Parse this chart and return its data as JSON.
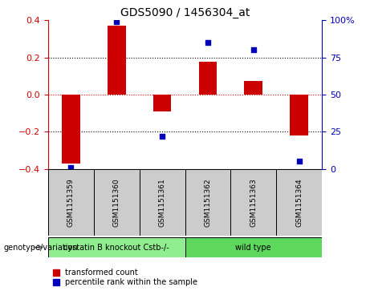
{
  "title": "GDS5090 / 1456304_at",
  "samples": [
    "GSM1151359",
    "GSM1151360",
    "GSM1151361",
    "GSM1151362",
    "GSM1151363",
    "GSM1151364"
  ],
  "bar_values": [
    -0.37,
    0.37,
    -0.09,
    0.175,
    0.075,
    -0.22
  ],
  "percentile_values": [
    1,
    99,
    22,
    85,
    80,
    5
  ],
  "ylim_left": [
    -0.4,
    0.4
  ],
  "ylim_right": [
    0,
    100
  ],
  "groups": [
    {
      "label": "cystatin B knockout Cstb-/-",
      "n": 3,
      "color": "#90EE90"
    },
    {
      "label": "wild type",
      "n": 3,
      "color": "#5DD85D"
    }
  ],
  "bar_color": "#cc0000",
  "dot_color": "#0000bb",
  "zero_line_color": "#cc0000",
  "left_tick_color": "#cc0000",
  "right_tick_color": "#0000bb",
  "legend_items": [
    "transformed count",
    "percentile rank within the sample"
  ],
  "genotype_label": "genotype/variation",
  "yticks_left": [
    -0.4,
    -0.2,
    0.0,
    0.2,
    0.4
  ],
  "yticks_right": [
    0,
    25,
    50,
    75,
    100
  ],
  "right_tick_labels": [
    "0",
    "25",
    "50",
    "75",
    "100%"
  ],
  "sample_box_color": "#cccccc",
  "bar_width": 0.4,
  "dot_size": 20
}
